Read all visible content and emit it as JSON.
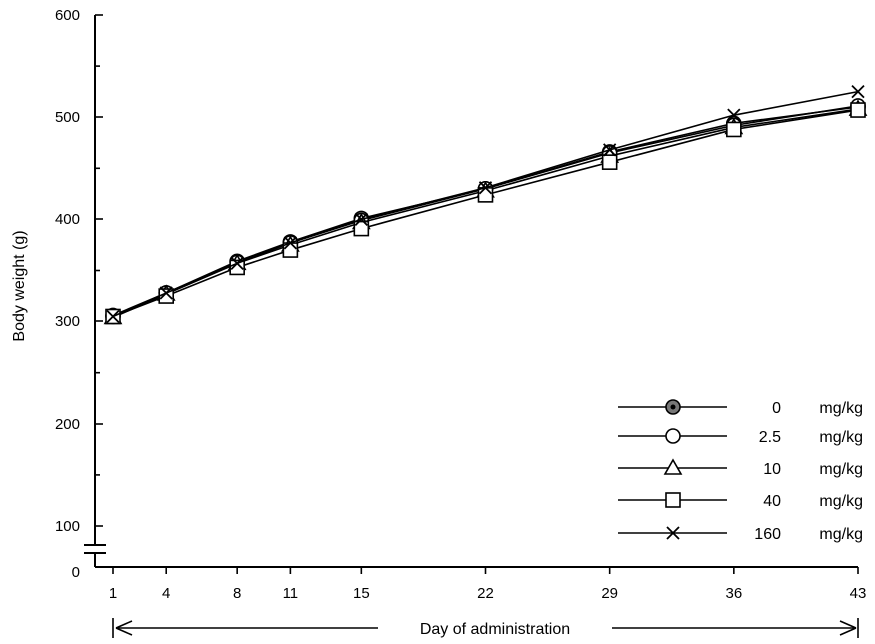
{
  "chart_data": {
    "type": "line",
    "title": "",
    "xlabel": "Day of administration",
    "ylabel": "Body weight (g)",
    "x": [
      1,
      4,
      8,
      11,
      15,
      22,
      29,
      36,
      43
    ],
    "x_ticks": [
      "1",
      "4",
      "8",
      "11",
      "15",
      "22",
      "29",
      "36",
      "43"
    ],
    "y_ticks": [
      "0",
      "100",
      "200",
      "300",
      "400",
      "500",
      "600"
    ],
    "ylim": [
      0,
      600
    ],
    "y_axis_break": true,
    "grid": false,
    "legend_position": "bottom-right",
    "series": [
      {
        "name": "0",
        "unit": "mg/kg",
        "marker": "filled-circle",
        "values": [
          305,
          328,
          359,
          378,
          401,
          430,
          466,
          494,
          510
        ]
      },
      {
        "name": "2.5",
        "unit": "mg/kg",
        "marker": "open-circle",
        "values": [
          306,
          328,
          358,
          377,
          399,
          430,
          465,
          492,
          511
        ]
      },
      {
        "name": "10",
        "unit": "mg/kg",
        "marker": "open-triangle",
        "values": [
          304,
          327,
          357,
          375,
          397,
          428,
          462,
          490,
          508
        ]
      },
      {
        "name": "40",
        "unit": "mg/kg",
        "marker": "open-square",
        "values": [
          305,
          325,
          353,
          370,
          391,
          424,
          456,
          488,
          507
        ]
      },
      {
        "name": "160",
        "unit": "mg/kg",
        "marker": "cross",
        "values": [
          305,
          328,
          357,
          377,
          400,
          431,
          468,
          502,
          525
        ]
      }
    ]
  }
}
